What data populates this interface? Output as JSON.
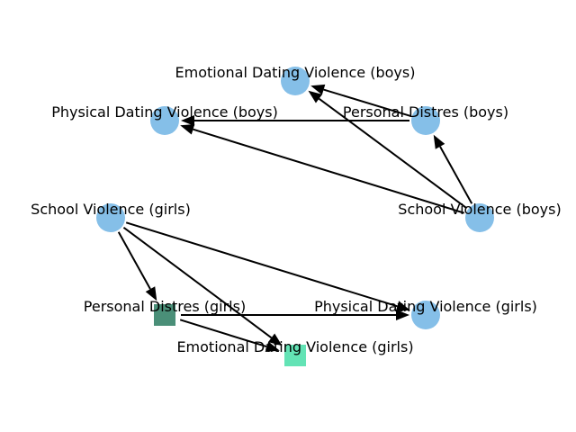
{
  "diagram": {
    "colors": {
      "circle_node": "#85bfe8",
      "square_node_dark": "#4a8f78",
      "square_node_light": "#63e3b5",
      "edge": "#000000",
      "background": "#ffffff"
    },
    "nodes": [
      {
        "id": "edv_boys",
        "label": "Emotional Dating Violence (boys)",
        "shape": "circle",
        "color": "#85bfe8"
      },
      {
        "id": "pdv_boys",
        "label": "Physical Dating Violence (boys)",
        "shape": "circle",
        "color": "#85bfe8"
      },
      {
        "id": "pd_boys",
        "label": "Personal Distres (boys)",
        "shape": "circle",
        "color": "#85bfe8"
      },
      {
        "id": "sv_boys",
        "label": "School Violence (boys)",
        "shape": "circle",
        "color": "#85bfe8"
      },
      {
        "id": "sv_girls",
        "label": "School Violence (girls)",
        "shape": "circle",
        "color": "#85bfe8"
      },
      {
        "id": "pd_girls",
        "label": "Personal Distres (girls)",
        "shape": "square",
        "color": "#4a8f78"
      },
      {
        "id": "pdv_girls",
        "label": "Physical Dating Violence (girls)",
        "shape": "circle",
        "color": "#85bfe8"
      },
      {
        "id": "edv_girls",
        "label": "Emotional Dating Violence (girls)",
        "shape": "square",
        "color": "#63e3b5"
      }
    ],
    "edges": [
      {
        "from": "pd_boys",
        "to": "edv_boys"
      },
      {
        "from": "pd_boys",
        "to": "pdv_boys"
      },
      {
        "from": "sv_boys",
        "to": "edv_boys"
      },
      {
        "from": "sv_boys",
        "to": "pdv_boys"
      },
      {
        "from": "sv_boys",
        "to": "pd_boys"
      },
      {
        "from": "sv_girls",
        "to": "pd_girls"
      },
      {
        "from": "sv_girls",
        "to": "edv_girls"
      },
      {
        "from": "sv_girls",
        "to": "pdv_girls"
      },
      {
        "from": "pd_girls",
        "to": "pdv_girls"
      },
      {
        "from": "pd_girls",
        "to": "edv_girls"
      }
    ]
  }
}
